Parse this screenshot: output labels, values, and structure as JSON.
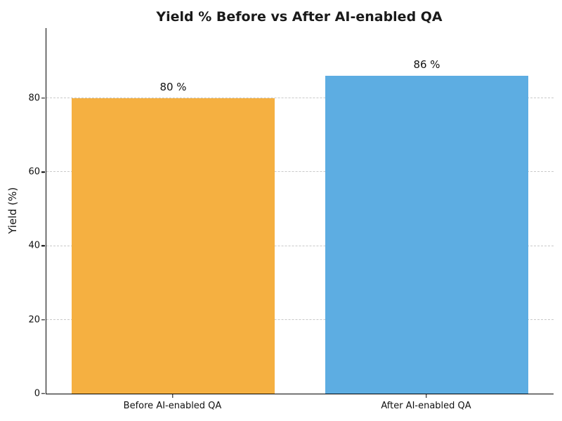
{
  "chart_data": {
    "type": "bar",
    "title": "Yield % Before vs After AI-enabled QA",
    "categories": [
      "Before AI-enabled QA",
      "After AI-enabled QA"
    ],
    "values": [
      80,
      86
    ],
    "bar_labels": [
      "80 %",
      "86 %"
    ],
    "bar_colors": [
      "#F5B041",
      "#5DADE2"
    ],
    "xlabel": "",
    "ylabel": "Yield (%)",
    "ylim": [
      0,
      99
    ],
    "yticks": [
      0,
      20,
      40,
      60,
      80
    ],
    "grid": "horizontal-dashed",
    "gridline_color": "#c9c9c9",
    "legend": "none",
    "title_color": "#1a1a1a"
  }
}
